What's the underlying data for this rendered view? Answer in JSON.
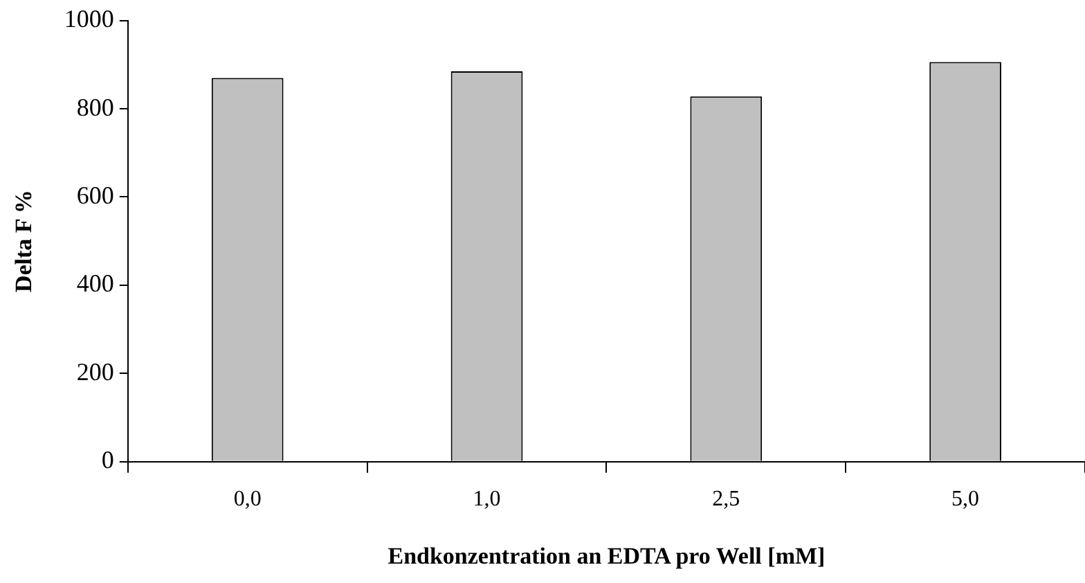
{
  "chart_data": {
    "type": "bar",
    "xlabel": "Endkonzentration an EDTA pro Well [mM]",
    "ylabel": "Delta F %",
    "categories": [
      "0,0",
      "1,0",
      "2,5",
      "5,0"
    ],
    "values": [
      870,
      885,
      828,
      906
    ],
    "color": "#c0c0c0",
    "ylim": [
      0,
      1000
    ],
    "yticks": [
      0,
      200,
      400,
      600,
      800,
      1000
    ],
    "grid": false,
    "legend": false
  }
}
